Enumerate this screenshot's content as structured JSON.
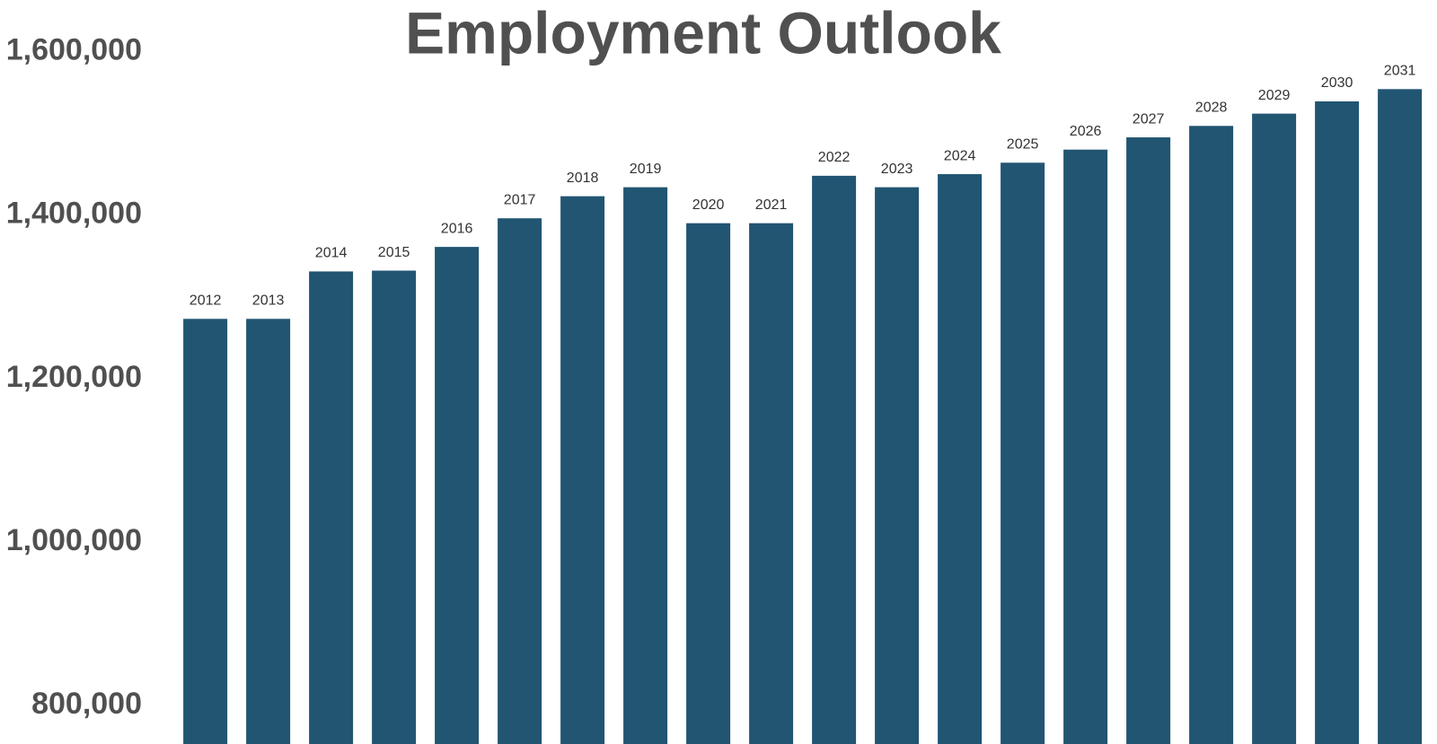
{
  "chart_data": {
    "type": "bar",
    "title": "Employment Outlook",
    "categories": [
      "2012",
      "2013",
      "2014",
      "2015",
      "2016",
      "2017",
      "2018",
      "2019",
      "2020",
      "2021",
      "2022",
      "2023",
      "2024",
      "2025",
      "2026",
      "2027",
      "2028",
      "2029",
      "2030",
      "2031"
    ],
    "values": [
      1273000,
      1273000,
      1331000,
      1332000,
      1361000,
      1396000,
      1423000,
      1434000,
      1390000,
      1390000,
      1448000,
      1434000,
      1450000,
      1464000,
      1480000,
      1495000,
      1509000,
      1524000,
      1539000,
      1554000
    ],
    "color": "#215572",
    "ylim": [
      753000,
      1663000
    ],
    "yticks": [
      {
        "value": 800000,
        "label": "800,000"
      },
      {
        "value": 1000000,
        "label": "1,000,000"
      },
      {
        "value": 1200000,
        "label": "1,200,000"
      },
      {
        "value": 1400000,
        "label": "1,400,000"
      },
      {
        "value": 1600000,
        "label": "1,600,000"
      }
    ],
    "grid": false
  }
}
